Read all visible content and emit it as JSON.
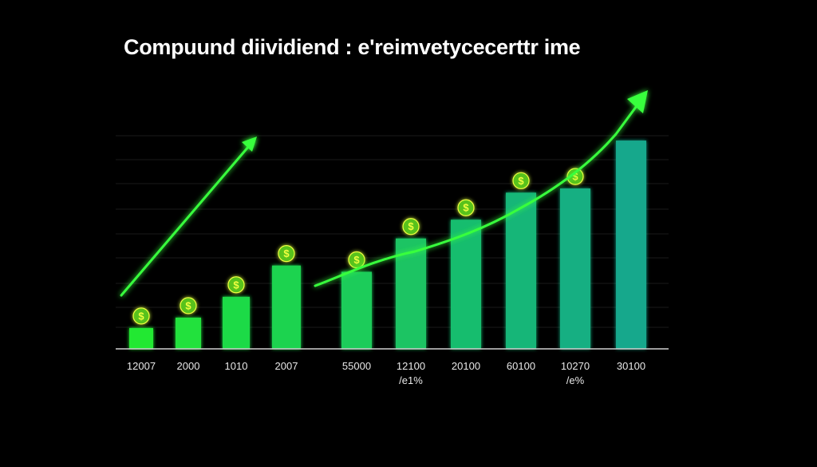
{
  "title": "Compuund diividiend : e'reimvetycecerttr ime",
  "chart_data": {
    "type": "bar",
    "categories": [
      "12007",
      "2000",
      "1010",
      "2007",
      "55000",
      "12100",
      "20100",
      "60100",
      "10270",
      "30100"
    ],
    "sublabels": [
      "",
      "",
      "",
      "",
      "",
      "/e1%",
      "",
      "",
      "/e%",
      ""
    ],
    "values": [
      1,
      1.5,
      2.5,
      4,
      3.7,
      5.3,
      6.2,
      7.5,
      7.7,
      10
    ],
    "coin_symbol": "$",
    "ylim": [
      0,
      11
    ],
    "grid": true,
    "trend_arrows": 2,
    "colors": {
      "bar_light": "#22e832",
      "bar_teal": "#15a88c",
      "line": "#39ff3c",
      "coin_fill": "#58c21a",
      "coin_text": "#f0ff40",
      "grid": "#1a1a1a",
      "axis": "#cfcfcf"
    }
  }
}
